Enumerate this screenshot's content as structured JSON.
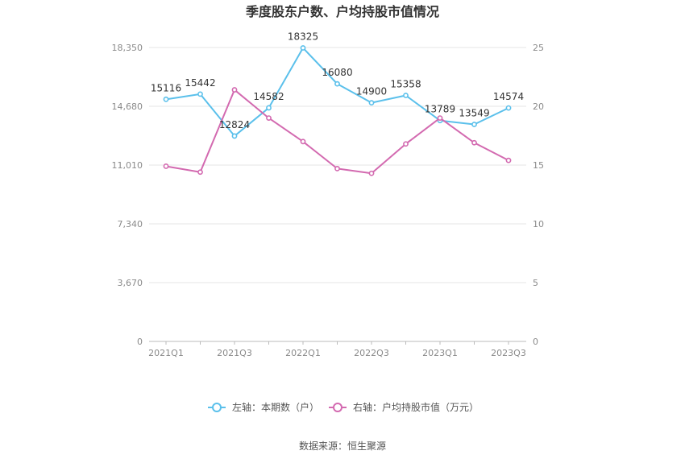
{
  "chart_data": {
    "type": "line",
    "title": "季度股东户数、户均持股市值情况",
    "categories": [
      "2021Q1",
      "2021Q2",
      "2021Q3",
      "2021Q4",
      "2022Q1",
      "2022Q2",
      "2022Q3",
      "2022Q4",
      "2023Q1",
      "2023Q2",
      "2023Q3"
    ],
    "x_tick_labels": [
      "2021Q1",
      "2021Q3",
      "2022Q1",
      "2022Q3",
      "2023Q1",
      "2023Q3"
    ],
    "left_axis": {
      "ylim": [
        0,
        18350
      ],
      "ticks": [
        "0",
        "3,670",
        "7,340",
        "11,010",
        "14,680",
        "18,350"
      ]
    },
    "right_axis": {
      "ylim": [
        0,
        25
      ],
      "ticks": [
        "0",
        "5",
        "10",
        "15",
        "20",
        "25"
      ]
    },
    "grid": true,
    "legend_position": "bottom",
    "series": [
      {
        "name": "左轴：本期数（户）",
        "axis": "left",
        "color": "#5bc0eb",
        "values": [
          15116,
          15442,
          12824,
          14582,
          18325,
          16080,
          14900,
          15358,
          13789,
          13549,
          14574
        ],
        "labels": [
          "15116",
          "15442",
          "12824",
          "14582",
          "18325",
          "16080",
          "14900",
          "15358",
          "13789",
          "13549",
          "14574"
        ]
      },
      {
        "name": "右轴：户均持股市值（万元）",
        "axis": "right",
        "color": "#d36ab0",
        "values": [
          14.9,
          14.4,
          21.4,
          19.0,
          17.0,
          14.7,
          14.3,
          16.8,
          19.0,
          16.9,
          15.4
        ]
      }
    ]
  },
  "source": "数据来源：恒生聚源"
}
